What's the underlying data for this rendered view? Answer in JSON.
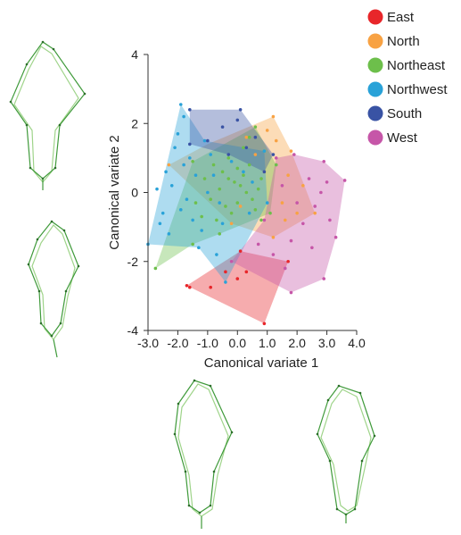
{
  "chart_data": {
    "type": "scatter",
    "title": "",
    "xlabel": "Canonical variate 1",
    "ylabel": "Canonical variate 2",
    "xlim": [
      -3.0,
      4.0
    ],
    "ylim": [
      -4,
      4
    ],
    "xticks": [
      -3.0,
      -2.0,
      -1.0,
      0.0,
      1.0,
      2.0,
      3.0,
      4.0
    ],
    "xtick_labels": [
      "-3.0",
      "-2.0",
      "-1.0",
      "0.0",
      "1.0",
      "2.0",
      "3.0",
      "4.0"
    ],
    "yticks": [
      -4,
      -2,
      0,
      2,
      4
    ],
    "ytick_labels": [
      "-4",
      "-2",
      "0",
      "2",
      "4"
    ],
    "legend_position": "top-right",
    "grid": false,
    "series": [
      {
        "name": "East",
        "color": "#e8262a",
        "hull": [
          [
            -1.7,
            -2.7
          ],
          [
            0.1,
            -1.7
          ],
          [
            1.7,
            -2.0
          ],
          [
            0.9,
            -3.8
          ]
        ],
        "points": [
          [
            -1.7,
            -2.7
          ],
          [
            -1.6,
            -2.75
          ],
          [
            -0.9,
            -2.75
          ],
          [
            0.1,
            -1.7
          ],
          [
            0.3,
            -2.3
          ],
          [
            1.7,
            -2.0
          ],
          [
            0.9,
            -3.8
          ],
          [
            0.0,
            -2.5
          ],
          [
            -0.4,
            -2.3
          ]
        ]
      },
      {
        "name": "North",
        "color": "#f8a243",
        "hull": [
          [
            -2.3,
            0.8
          ],
          [
            -1.0,
            1.4
          ],
          [
            1.2,
            2.2
          ],
          [
            1.8,
            1.2
          ],
          [
            2.6,
            -0.6
          ],
          [
            1.2,
            -1.3
          ],
          [
            -0.2,
            -0.9
          ]
        ],
        "points": [
          [
            1.2,
            2.2
          ],
          [
            1.0,
            1.8
          ],
          [
            1.3,
            1.5
          ],
          [
            1.8,
            1.2
          ],
          [
            2.6,
            -0.6
          ],
          [
            2.2,
            0.2
          ],
          [
            1.7,
            0.5
          ],
          [
            1.5,
            -0.3
          ],
          [
            2.0,
            -0.6
          ],
          [
            1.2,
            -1.3
          ],
          [
            -2.3,
            0.8
          ],
          [
            0.3,
            1.6
          ],
          [
            0.6,
            1.1
          ],
          [
            0.9,
            0.6
          ],
          [
            1.6,
            -0.8
          ],
          [
            -0.2,
            -0.9
          ],
          [
            0.1,
            -0.4
          ]
        ]
      },
      {
        "name": "Northeast",
        "color": "#6dbf4b",
        "hull": [
          [
            -2.75,
            -2.2
          ],
          [
            -1.5,
            0.9
          ],
          [
            0.6,
            1.9
          ],
          [
            1.3,
            0.8
          ],
          [
            1.1,
            -0.6
          ],
          [
            -0.6,
            -1.2
          ],
          [
            -1.5,
            -1.5
          ]
        ],
        "points": [
          [
            -2.75,
            -2.2
          ],
          [
            -1.5,
            0.9
          ],
          [
            0.6,
            1.9
          ],
          [
            1.3,
            0.8
          ],
          [
            1.1,
            -0.6
          ],
          [
            -0.6,
            -1.2
          ],
          [
            -1.5,
            -1.5
          ],
          [
            -0.8,
            0.8
          ],
          [
            -0.5,
            0.6
          ],
          [
            -0.3,
            0.4
          ],
          [
            -0.1,
            0.3
          ],
          [
            0.1,
            0.2
          ],
          [
            0.2,
            0.5
          ],
          [
            0.4,
            0.8
          ],
          [
            0.3,
            0.0
          ],
          [
            0.5,
            -0.2
          ],
          [
            0.7,
            0.1
          ],
          [
            0.8,
            0.4
          ],
          [
            -0.6,
            0.1
          ],
          [
            -0.9,
            -0.2
          ],
          [
            -0.4,
            -0.4
          ],
          [
            -0.2,
            -0.6
          ],
          [
            0.0,
            -0.3
          ],
          [
            0.6,
            -0.5
          ],
          [
            -1.1,
            0.4
          ],
          [
            -1.2,
            -0.7
          ],
          [
            -0.7,
            -0.8
          ],
          [
            0.9,
            1.2
          ],
          [
            -0.3,
            1.0
          ],
          [
            0.2,
            1.3
          ],
          [
            0.0,
            0.7
          ],
          [
            -1.4,
            -0.3
          ],
          [
            0.8,
            -0.8
          ],
          [
            0.4,
            1.6
          ]
        ]
      },
      {
        "name": "Northwest",
        "color": "#29a2d8",
        "hull": [
          [
            -3.0,
            -1.5
          ],
          [
            -1.9,
            2.55
          ],
          [
            -1.1,
            1.5
          ],
          [
            0.9,
            1.2
          ],
          [
            1.0,
            -0.3
          ],
          [
            -0.4,
            -2.6
          ],
          [
            -1.3,
            -1.6
          ]
        ],
        "points": [
          [
            -3.0,
            -1.5
          ],
          [
            -1.9,
            2.55
          ],
          [
            -1.8,
            2.2
          ],
          [
            -2.1,
            1.3
          ],
          [
            -2.4,
            0.6
          ],
          [
            -2.2,
            0.2
          ],
          [
            -2.5,
            -0.6
          ],
          [
            -2.6,
            -0.9
          ],
          [
            -2.3,
            -1.2
          ],
          [
            -1.6,
            1.0
          ],
          [
            -1.4,
            0.5
          ],
          [
            -1.7,
            -0.2
          ],
          [
            -1.9,
            -0.5
          ],
          [
            -1.5,
            -0.8
          ],
          [
            -1.3,
            -1.6
          ],
          [
            -1.1,
            1.5
          ],
          [
            -0.9,
            1.1
          ],
          [
            -0.8,
            0.5
          ],
          [
            -1.0,
            0.0
          ],
          [
            -0.6,
            -0.3
          ],
          [
            -0.4,
            -2.6
          ],
          [
            -0.5,
            -0.9
          ],
          [
            -0.2,
            0.9
          ],
          [
            0.2,
            0.6
          ],
          [
            0.5,
            0.3
          ],
          [
            0.9,
            1.2
          ],
          [
            1.0,
            -0.3
          ],
          [
            0.4,
            -0.6
          ],
          [
            -2.0,
            1.7
          ],
          [
            -1.2,
            -1.1
          ],
          [
            -1.8,
            0.8
          ],
          [
            -0.7,
            -1.8
          ],
          [
            -2.7,
            0.1
          ]
        ]
      },
      {
        "name": "South",
        "color": "#3953a4",
        "hull": [
          [
            -1.6,
            2.4
          ],
          [
            0.1,
            2.4
          ],
          [
            1.2,
            1.1
          ],
          [
            0.9,
            0.6
          ],
          [
            -0.3,
            1.1
          ],
          [
            -1.6,
            1.4
          ]
        ],
        "points": [
          [
            -1.6,
            2.4
          ],
          [
            0.1,
            2.4
          ],
          [
            0.0,
            2.1
          ],
          [
            -0.5,
            1.9
          ],
          [
            0.6,
            1.6
          ],
          [
            1.2,
            1.1
          ],
          [
            0.9,
            0.6
          ],
          [
            -0.3,
            1.1
          ],
          [
            -1.6,
            1.4
          ],
          [
            -1.0,
            1.5
          ],
          [
            0.3,
            1.3
          ]
        ]
      },
      {
        "name": "West",
        "color": "#c656a8",
        "hull": [
          [
            -0.2,
            -2.0
          ],
          [
            0.9,
            -0.8
          ],
          [
            1.3,
            1.0
          ],
          [
            1.9,
            1.1
          ],
          [
            2.9,
            0.9
          ],
          [
            3.6,
            0.35
          ],
          [
            3.3,
            -1.3
          ],
          [
            2.9,
            -2.5
          ],
          [
            1.8,
            -2.9
          ]
        ],
        "points": [
          [
            -0.2,
            -2.0
          ],
          [
            0.9,
            -0.8
          ],
          [
            1.3,
            1.0
          ],
          [
            1.9,
            1.1
          ],
          [
            2.9,
            0.9
          ],
          [
            3.6,
            0.35
          ],
          [
            3.3,
            -1.3
          ],
          [
            2.9,
            -2.5
          ],
          [
            1.8,
            -2.9
          ],
          [
            2.4,
            0.4
          ],
          [
            2.8,
            0.0
          ],
          [
            3.1,
            -0.8
          ],
          [
            2.2,
            -0.9
          ],
          [
            1.8,
            -1.4
          ],
          [
            2.5,
            -1.6
          ],
          [
            1.6,
            -2.2
          ],
          [
            1.2,
            -1.8
          ],
          [
            0.7,
            -1.5
          ],
          [
            2.0,
            -0.3
          ],
          [
            3.0,
            0.3
          ],
          [
            1.5,
            0.2
          ],
          [
            2.6,
            -0.4
          ]
        ]
      }
    ]
  }
}
